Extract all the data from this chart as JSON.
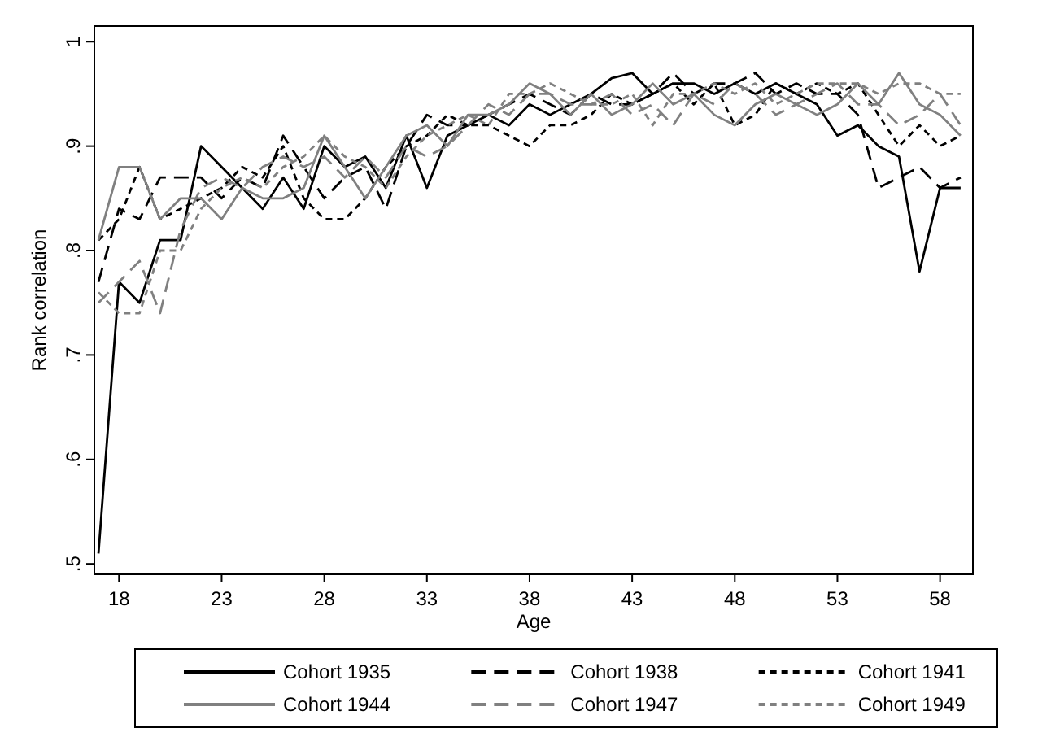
{
  "chart_data": {
    "type": "line",
    "xlabel": "Age",
    "ylabel": "Rank correlation",
    "x": [
      17,
      18,
      19,
      20,
      21,
      22,
      23,
      24,
      25,
      26,
      27,
      28,
      29,
      30,
      31,
      32,
      33,
      34,
      35,
      36,
      37,
      38,
      39,
      40,
      41,
      42,
      43,
      44,
      45,
      46,
      47,
      48,
      49,
      50,
      51,
      52,
      53,
      54,
      55,
      56,
      57,
      58,
      59
    ],
    "xlim": [
      16.8,
      59.6
    ],
    "xticks": [
      18,
      23,
      28,
      33,
      38,
      43,
      48,
      53,
      58
    ],
    "ylim": [
      0.49,
      1.015
    ],
    "yticks": [
      {
        "value": 0.5,
        "label": ".5"
      },
      {
        "value": 0.6,
        "label": ".6"
      },
      {
        "value": 0.7,
        "label": ".7"
      },
      {
        "value": 0.8,
        "label": ".8"
      },
      {
        "value": 0.9,
        "label": ".9"
      },
      {
        "value": 1,
        "label": "1"
      }
    ],
    "legend": "bottom",
    "grid": false,
    "series": [
      {
        "name": "Cohort 1935",
        "color": "#000000",
        "line_style": "solid",
        "values": [
          0.51,
          0.77,
          0.75,
          0.81,
          0.81,
          0.9,
          0.88,
          0.86,
          0.84,
          0.87,
          0.84,
          0.9,
          0.88,
          0.89,
          0.86,
          0.91,
          0.86,
          0.91,
          0.92,
          0.93,
          0.92,
          0.94,
          0.93,
          0.94,
          0.95,
          0.965,
          0.97,
          0.95,
          0.96,
          0.96,
          0.95,
          0.96,
          0.95,
          0.96,
          0.95,
          0.94,
          0.91,
          0.92,
          0.9,
          0.89,
          0.78,
          0.86,
          0.86
        ]
      },
      {
        "name": "Cohort 1938",
        "color": "#000000",
        "line_style": "dashed",
        "values": [
          0.77,
          0.84,
          0.83,
          0.87,
          0.87,
          0.87,
          0.85,
          0.87,
          0.86,
          0.91,
          0.88,
          0.85,
          0.87,
          0.88,
          0.84,
          0.9,
          0.93,
          0.92,
          0.92,
          0.93,
          0.94,
          0.95,
          0.94,
          0.93,
          0.95,
          0.94,
          0.94,
          0.95,
          0.97,
          0.95,
          0.96,
          0.96,
          0.97,
          0.95,
          0.96,
          0.95,
          0.95,
          0.93,
          0.86,
          0.87,
          0.88,
          0.86,
          0.87
        ]
      },
      {
        "name": "Cohort 1941",
        "color": "#000000",
        "line_style": "dotted",
        "values": [
          0.81,
          0.83,
          0.88,
          0.83,
          0.84,
          0.85,
          0.86,
          0.88,
          0.87,
          0.9,
          0.85,
          0.83,
          0.83,
          0.85,
          0.88,
          0.9,
          0.91,
          0.93,
          0.92,
          0.92,
          0.91,
          0.9,
          0.92,
          0.92,
          0.93,
          0.95,
          0.94,
          0.95,
          0.96,
          0.94,
          0.96,
          0.92,
          0.93,
          0.96,
          0.95,
          0.96,
          0.95,
          0.96,
          0.93,
          0.9,
          0.92,
          0.9,
          0.91
        ]
      },
      {
        "name": "Cohort 1944",
        "color": "#808080",
        "line_style": "solid",
        "values": [
          0.81,
          0.88,
          0.88,
          0.83,
          0.85,
          0.85,
          0.83,
          0.86,
          0.85,
          0.85,
          0.86,
          0.91,
          0.88,
          0.85,
          0.88,
          0.91,
          0.92,
          0.9,
          0.93,
          0.93,
          0.94,
          0.96,
          0.95,
          0.93,
          0.95,
          0.93,
          0.94,
          0.96,
          0.94,
          0.95,
          0.93,
          0.92,
          0.94,
          0.95,
          0.94,
          0.93,
          0.94,
          0.96,
          0.94,
          0.97,
          0.94,
          0.93,
          0.91
        ]
      },
      {
        "name": "Cohort 1947",
        "color": "#808080",
        "line_style": "dashed",
        "values": [
          0.75,
          0.77,
          0.79,
          0.74,
          0.82,
          0.86,
          0.87,
          0.86,
          0.88,
          0.89,
          0.88,
          0.89,
          0.87,
          0.89,
          0.87,
          0.9,
          0.89,
          0.9,
          0.92,
          0.94,
          0.93,
          0.95,
          0.95,
          0.94,
          0.94,
          0.95,
          0.93,
          0.94,
          0.92,
          0.95,
          0.94,
          0.96,
          0.95,
          0.93,
          0.94,
          0.95,
          0.96,
          0.94,
          0.94,
          0.92,
          0.93,
          0.95,
          0.92
        ]
      },
      {
        "name": "Cohort 1949",
        "color": "#808080",
        "line_style": "dotted",
        "values": [
          0.76,
          0.74,
          0.74,
          0.8,
          0.8,
          0.84,
          0.86,
          0.87,
          0.86,
          0.88,
          0.89,
          0.91,
          0.89,
          0.88,
          0.86,
          0.89,
          0.91,
          0.92,
          0.93,
          0.92,
          0.95,
          0.95,
          0.96,
          0.95,
          0.94,
          0.94,
          0.95,
          0.92,
          0.95,
          0.95,
          0.96,
          0.95,
          0.96,
          0.94,
          0.95,
          0.96,
          0.96,
          0.96,
          0.95,
          0.96,
          0.96,
          0.95,
          0.95
        ]
      }
    ]
  }
}
